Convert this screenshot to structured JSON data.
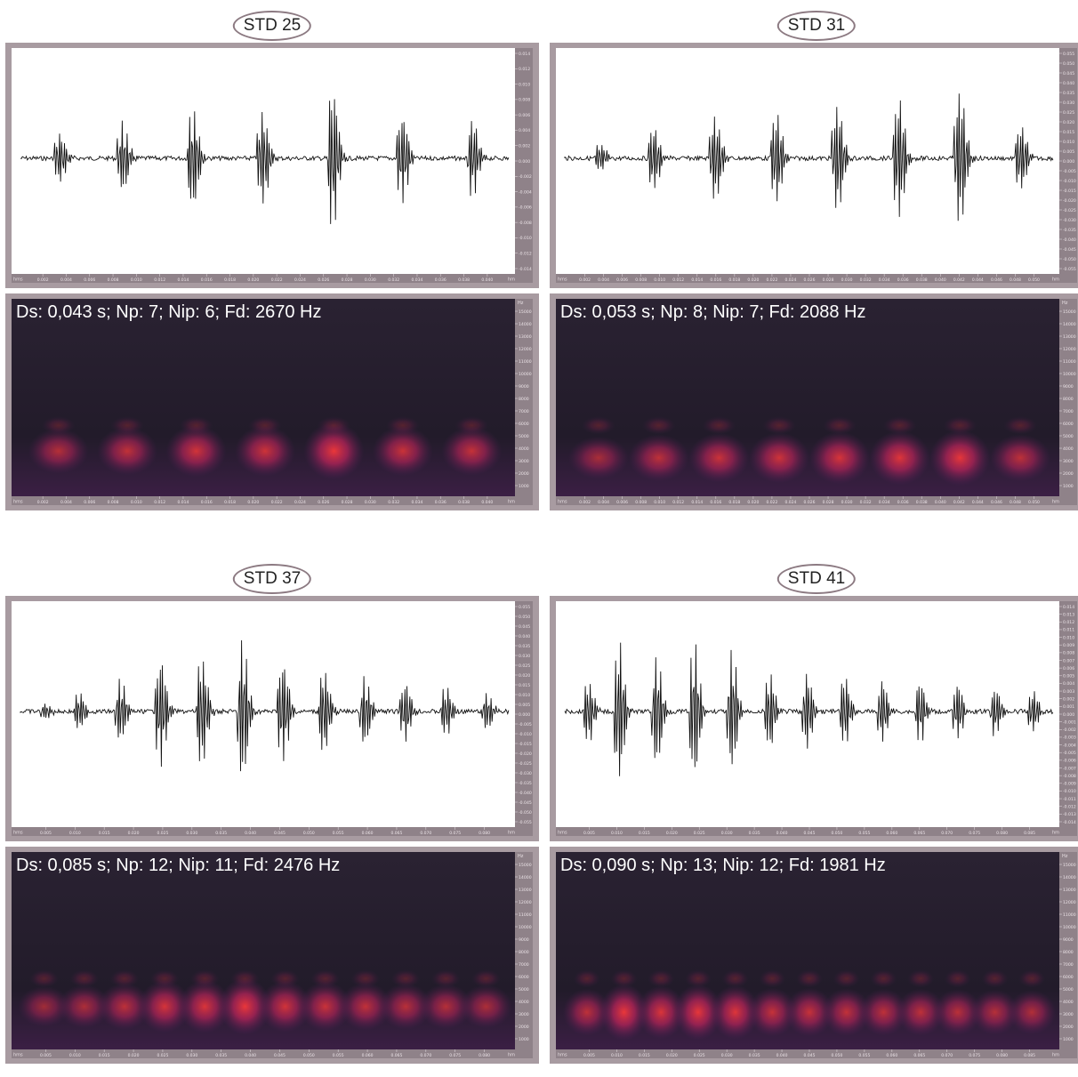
{
  "panels": [
    {
      "label": "STD 25",
      "caption": "Ds: 0,043 s; Np: 7; Nip: 6; Fd: 2670 Hz",
      "duration_s": 0.043,
      "pulse_count": 7,
      "interpulse_count": 6,
      "dominant_frequency_hz": 2670,
      "time_ticks": [
        "0.002",
        "0.004",
        "0.006",
        "0.008",
        "0.010",
        "0.012",
        "0.014",
        "0.016",
        "0.018",
        "0.020",
        "0.022",
        "0.024",
        "0.026",
        "0.028",
        "0.030",
        "0.032",
        "0.034",
        "0.036",
        "0.038",
        "0.040"
      ],
      "amp_ticks": [
        "0.014",
        "0.012",
        "0.010",
        "0.008",
        "0.006",
        "0.004",
        "0.002",
        "0.000",
        "-0.002",
        "-0.004",
        "-0.006",
        "-0.008",
        "-0.010",
        "-0.012",
        "-0.014"
      ],
      "pulse_amplitudes": [
        0.35,
        0.5,
        0.7,
        0.65,
        1.0,
        0.6,
        0.55
      ]
    },
    {
      "label": "STD 31",
      "caption": "Ds: 0,053 s; Np: 8; Nip: 7; Fd: 2088 Hz",
      "duration_s": 0.053,
      "pulse_count": 8,
      "interpulse_count": 7,
      "dominant_frequency_hz": 2088,
      "time_ticks": [
        "0.002",
        "0.004",
        "0.006",
        "0.008",
        "0.010",
        "0.012",
        "0.014",
        "0.016",
        "0.018",
        "0.020",
        "0.022",
        "0.024",
        "0.026",
        "0.028",
        "0.030",
        "0.032",
        "0.034",
        "0.036",
        "0.038",
        "0.040",
        "0.042",
        "0.044",
        "0.046",
        "0.048",
        "0.050"
      ],
      "amp_ticks": [
        "0.055",
        "0.050",
        "0.045",
        "0.040",
        "0.035",
        "0.030",
        "0.025",
        "0.020",
        "0.015",
        "0.010",
        "0.005",
        "0.000",
        "-0.005",
        "-0.010",
        "-0.015",
        "-0.020",
        "-0.025",
        "-0.030",
        "-0.035",
        "-0.040",
        "-0.045",
        "-0.050",
        "-0.055"
      ],
      "pulse_amplitudes": [
        0.2,
        0.45,
        0.6,
        0.65,
        0.75,
        0.85,
        0.95,
        0.45
      ]
    },
    {
      "label": "STD 37",
      "caption": "Ds: 0,085 s; Np: 12; Nip: 11; Fd: 2476 Hz",
      "duration_s": 0.085,
      "pulse_count": 12,
      "interpulse_count": 11,
      "dominant_frequency_hz": 2476,
      "time_ticks": [
        "0.005",
        "0.010",
        "0.015",
        "0.020",
        "0.025",
        "0.030",
        "0.035",
        "0.040",
        "0.045",
        "0.050",
        "0.055",
        "0.060",
        "0.065",
        "0.070",
        "0.075",
        "0.080"
      ],
      "amp_ticks": [
        "0.055",
        "0.050",
        "0.045",
        "0.040",
        "0.035",
        "0.030",
        "0.025",
        "0.020",
        "0.015",
        "0.010",
        "0.005",
        "0.000",
        "-0.005",
        "-0.010",
        "-0.015",
        "-0.020",
        "-0.025",
        "-0.030",
        "-0.035",
        "-0.040",
        "-0.045",
        "-0.050",
        "-0.055"
      ],
      "pulse_amplitudes": [
        0.1,
        0.25,
        0.45,
        0.75,
        0.8,
        1.0,
        0.7,
        0.6,
        0.5,
        0.4,
        0.35,
        0.25
      ]
    },
    {
      "label": "STD 41",
      "caption": "Ds: 0,090 s; Np: 13; Nip: 12; Fd: 1981 Hz",
      "duration_s": 0.09,
      "pulse_count": 13,
      "interpulse_count": 12,
      "dominant_frequency_hz": 1981,
      "time_ticks": [
        "0.005",
        "0.010",
        "0.015",
        "0.020",
        "0.025",
        "0.030",
        "0.035",
        "0.040",
        "0.045",
        "0.050",
        "0.055",
        "0.060",
        "0.065",
        "0.070",
        "0.075",
        "0.080",
        "0.085"
      ],
      "amp_ticks": [
        "0.014",
        "0.013",
        "0.012",
        "0.011",
        "0.010",
        "0.009",
        "0.008",
        "0.007",
        "0.006",
        "0.005",
        "0.004",
        "0.003",
        "0.002",
        "0.001",
        "0.000",
        "-0.001",
        "-0.002",
        "-0.003",
        "-0.004",
        "-0.005",
        "-0.006",
        "-0.007",
        "-0.008",
        "-0.009",
        "-0.010",
        "-0.011",
        "-0.012",
        "-0.013",
        "-0.014"
      ],
      "pulse_amplitudes": [
        0.45,
        1.0,
        0.8,
        0.95,
        0.85,
        0.55,
        0.55,
        0.5,
        0.45,
        0.45,
        0.4,
        0.35,
        0.3
      ]
    }
  ],
  "freq_ticks": [
    "15000",
    "14000",
    "13000",
    "12000",
    "11000",
    "10000",
    "9000",
    "8000",
    "7000",
    "6000",
    "5000",
    "4000",
    "3000",
    "2000",
    "1000"
  ],
  "freq_unit": "Hz",
  "time_unit": "hms",
  "colors": {
    "frame": "#a89ba1",
    "spectrogram_bg": "#221b2a",
    "hot": "#ff3a3a",
    "warm": "#c0245c",
    "cool": "#5a1f5e"
  }
}
